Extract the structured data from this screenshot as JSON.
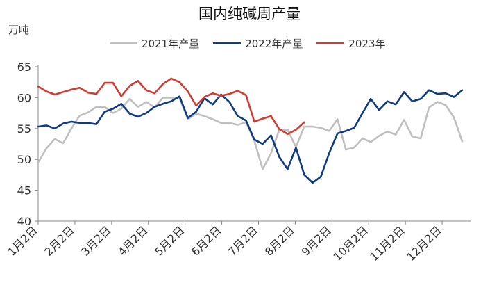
{
  "chart_data": {
    "type": "line",
    "title": "国内纯碱周产量",
    "ylabel": "万吨",
    "ylim": [
      40,
      65
    ],
    "yticks": [
      40,
      45,
      50,
      55,
      60,
      65
    ],
    "grid": false,
    "legend_position": "top",
    "x_tick_labels": [
      "1月2日",
      "2月2日",
      "3月2日",
      "4月2日",
      "5月2日",
      "6月2日",
      "7月2日",
      "8月2日",
      "9月2日",
      "10月2日",
      "11月2日",
      "12月2日"
    ],
    "x_week_range": [
      1,
      53
    ],
    "series": [
      {
        "name": "2021年产量",
        "color": "#bfbfbf",
        "values": [
          49.5,
          51.8,
          53.3,
          52.6,
          55.0,
          57.1,
          57.6,
          58.5,
          58.5,
          57.5,
          58.2,
          59.8,
          58.5,
          59.3,
          58.4,
          60.0,
          60.0,
          59.9,
          56.5,
          57.4,
          57.0,
          56.5,
          55.9,
          55.9,
          55.6,
          56.0,
          53.0,
          48.4,
          51.0,
          54.8,
          54.8,
          52.0,
          55.3,
          55.3,
          55.1,
          54.6,
          56.5,
          51.6,
          51.9,
          53.4,
          52.8,
          53.8,
          54.5,
          54.0,
          56.4,
          53.7,
          53.4,
          58.4,
          59.3,
          58.8,
          56.8,
          52.9
        ]
      },
      {
        "name": "2022年产量",
        "color": "#0f3b82",
        "values": [
          55.3,
          55.5,
          55.0,
          55.8,
          56.1,
          55.9,
          55.9,
          55.7,
          57.7,
          58.2,
          59.0,
          57.4,
          56.9,
          57.5,
          58.5,
          59.0,
          59.4,
          60.2,
          56.7,
          57.7,
          59.9,
          58.9,
          60.5,
          59.3,
          57.0,
          56.3,
          53.2,
          52.5,
          53.9,
          50.4,
          48.4,
          51.9,
          47.5,
          46.2,
          47.2,
          51.0,
          54.2,
          54.6,
          55.1,
          57.5,
          59.8,
          58.0,
          59.4,
          58.9,
          60.9,
          59.4,
          59.8,
          61.2,
          60.6,
          60.7,
          60.1,
          61.2
        ]
      },
      {
        "name": "2023年",
        "color": "#d03b32",
        "values": [
          61.8,
          61.0,
          60.5,
          60.9,
          61.3,
          61.6,
          60.8,
          60.6,
          62.4,
          62.4,
          60.2,
          61.9,
          62.7,
          61.2,
          60.7,
          62.2,
          63.1,
          62.5,
          61.0,
          58.7,
          60.1,
          60.7,
          60.3,
          60.6,
          61.1,
          60.4,
          56.1,
          56.6,
          57.0,
          54.9,
          54.1,
          54.8,
          56.0
        ]
      }
    ]
  }
}
